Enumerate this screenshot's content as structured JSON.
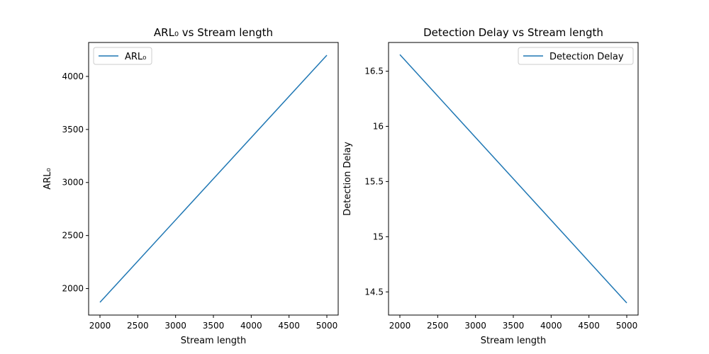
{
  "chart_data": [
    {
      "type": "line",
      "title": "ARL₀ vs Stream length",
      "xlabel": "Stream length",
      "ylabel": "ARL₀",
      "x": [
        2000,
        5000
      ],
      "xlim": [
        1850,
        5150
      ],
      "ylim": [
        1750,
        4320
      ],
      "xticks": [
        2000,
        2500,
        3000,
        3500,
        4000,
        4500,
        5000
      ],
      "yticks": [
        2000,
        2500,
        3000,
        3500,
        4000
      ],
      "legend_position": "upper-left",
      "grid": false,
      "series": [
        {
          "name": "ARL₀",
          "color": "#1f77b4",
          "values": [
            1870,
            4200
          ]
        }
      ]
    },
    {
      "type": "line",
      "title": "Detection Delay vs Stream length",
      "xlabel": "Stream length",
      "ylabel": "Detection Delay",
      "x": [
        2000,
        5000
      ],
      "xlim": [
        1850,
        5150
      ],
      "ylim": [
        14.29,
        16.76
      ],
      "xticks": [
        2000,
        2500,
        3000,
        3500,
        4000,
        4500,
        5000
      ],
      "yticks": [
        14.5,
        15.0,
        15.5,
        16.0,
        16.5
      ],
      "legend_position": "upper-right",
      "grid": false,
      "series": [
        {
          "name": "Detection Delay",
          "color": "#1f77b4",
          "values": [
            16.65,
            14.4
          ]
        }
      ]
    }
  ]
}
